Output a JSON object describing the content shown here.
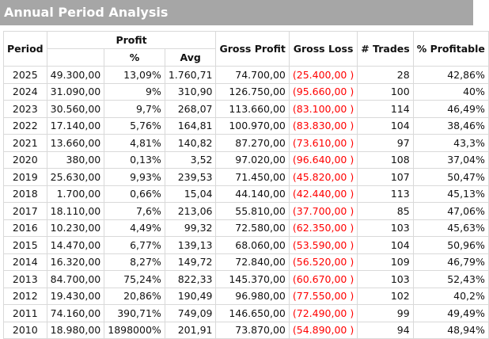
{
  "title": "Annual Period Analysis",
  "headers": {
    "period": "Period",
    "profit": "Profit",
    "pct": "%",
    "avg": "Avg",
    "gross_profit": "Gross Profit",
    "gross_loss": "Gross Loss",
    "trades": "# Trades",
    "profitable": "% Profitable"
  },
  "rows": [
    {
      "period": "2025",
      "profit": "49.300,00",
      "pct": "13,09%",
      "avg": "1.760,71",
      "gross_profit": "74.700,00",
      "gross_loss": "(25.400,00 )",
      "trades": "28",
      "profitable": "42,86%"
    },
    {
      "period": "2024",
      "profit": "31.090,00",
      "pct": "9%",
      "avg": "310,90",
      "gross_profit": "126.750,00",
      "gross_loss": "(95.660,00 )",
      "trades": "100",
      "profitable": "40%"
    },
    {
      "period": "2023",
      "profit": "30.560,00",
      "pct": "9,7%",
      "avg": "268,07",
      "gross_profit": "113.660,00",
      "gross_loss": "(83.100,00 )",
      "trades": "114",
      "profitable": "46,49%"
    },
    {
      "period": "2022",
      "profit": "17.140,00",
      "pct": "5,76%",
      "avg": "164,81",
      "gross_profit": "100.970,00",
      "gross_loss": "(83.830,00 )",
      "trades": "104",
      "profitable": "38,46%"
    },
    {
      "period": "2021",
      "profit": "13.660,00",
      "pct": "4,81%",
      "avg": "140,82",
      "gross_profit": "87.270,00",
      "gross_loss": "(73.610,00 )",
      "trades": "97",
      "profitable": "43,3%"
    },
    {
      "period": "2020",
      "profit": "380,00",
      "pct": "0,13%",
      "avg": "3,52",
      "gross_profit": "97.020,00",
      "gross_loss": "(96.640,00 )",
      "trades": "108",
      "profitable": "37,04%"
    },
    {
      "period": "2019",
      "profit": "25.630,00",
      "pct": "9,93%",
      "avg": "239,53",
      "gross_profit": "71.450,00",
      "gross_loss": "(45.820,00 )",
      "trades": "107",
      "profitable": "50,47%"
    },
    {
      "period": "2018",
      "profit": "1.700,00",
      "pct": "0,66%",
      "avg": "15,04",
      "gross_profit": "44.140,00",
      "gross_loss": "(42.440,00 )",
      "trades": "113",
      "profitable": "45,13%"
    },
    {
      "period": "2017",
      "profit": "18.110,00",
      "pct": "7,6%",
      "avg": "213,06",
      "gross_profit": "55.810,00",
      "gross_loss": "(37.700,00 )",
      "trades": "85",
      "profitable": "47,06%"
    },
    {
      "period": "2016",
      "profit": "10.230,00",
      "pct": "4,49%",
      "avg": "99,32",
      "gross_profit": "72.580,00",
      "gross_loss": "(62.350,00 )",
      "trades": "103",
      "profitable": "45,63%"
    },
    {
      "period": "2015",
      "profit": "14.470,00",
      "pct": "6,77%",
      "avg": "139,13",
      "gross_profit": "68.060,00",
      "gross_loss": "(53.590,00 )",
      "trades": "104",
      "profitable": "50,96%"
    },
    {
      "period": "2014",
      "profit": "16.320,00",
      "pct": "8,27%",
      "avg": "149,72",
      "gross_profit": "72.840,00",
      "gross_loss": "(56.520,00 )",
      "trades": "109",
      "profitable": "46,79%"
    },
    {
      "period": "2013",
      "profit": "84.700,00",
      "pct": "75,24%",
      "avg": "822,33",
      "gross_profit": "145.370,00",
      "gross_loss": "(60.670,00 )",
      "trades": "103",
      "profitable": "52,43%"
    },
    {
      "period": "2012",
      "profit": "19.430,00",
      "pct": "20,86%",
      "avg": "190,49",
      "gross_profit": "96.980,00",
      "gross_loss": "(77.550,00 )",
      "trades": "102",
      "profitable": "40,2%"
    },
    {
      "period": "2011",
      "profit": "74.160,00",
      "pct": "390,71%",
      "avg": "749,09",
      "gross_profit": "146.650,00",
      "gross_loss": "(72.490,00 )",
      "trades": "99",
      "profitable": "49,49%"
    },
    {
      "period": "2010",
      "profit": "18.980,00",
      "pct": "1898000%",
      "avg": "201,91",
      "gross_profit": "73.870,00",
      "gross_loss": "(54.890,00 )",
      "trades": "94",
      "profitable": "48,94%"
    }
  ]
}
